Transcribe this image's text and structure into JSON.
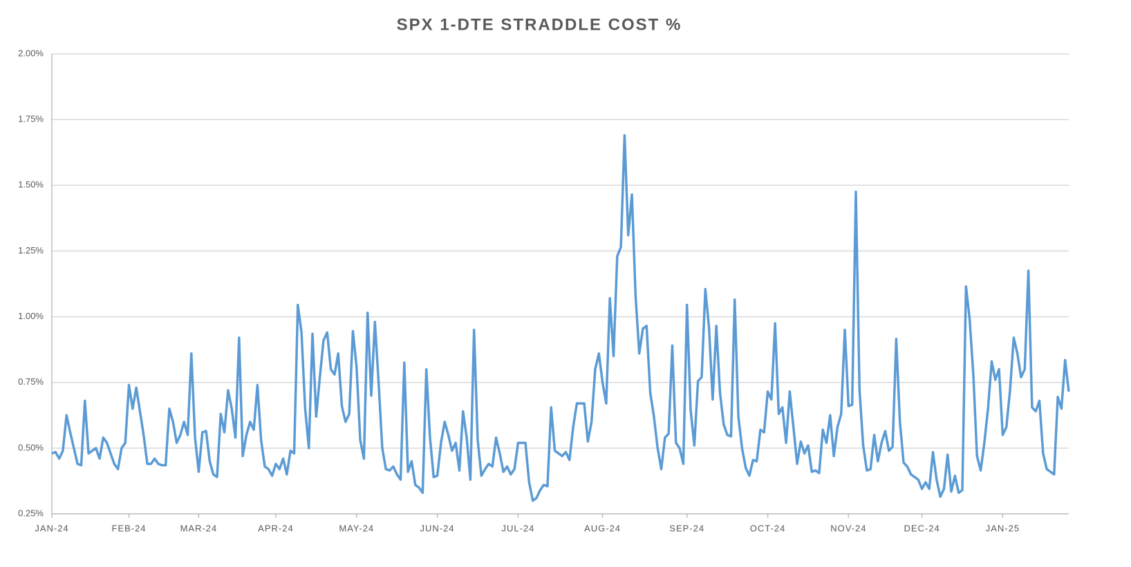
{
  "chart_data": {
    "type": "line",
    "title": "SPX 1-DTE STRADDLE COST %",
    "color": "#5b9bd5",
    "grid": true,
    "ylim": [
      0.25,
      2
    ],
    "yticks": [
      {
        "value": 0.25,
        "label": "0.25%"
      },
      {
        "value": 0.5,
        "label": "0.50%"
      },
      {
        "value": 0.75,
        "label": "0.75%"
      },
      {
        "value": 1,
        "label": "1.00%"
      },
      {
        "value": 1.25,
        "label": "1.25%"
      },
      {
        "value": 1.5,
        "label": "1.50%"
      },
      {
        "value": 1.75,
        "label": "1.75%"
      },
      {
        "value": 2,
        "label": "2.00%"
      }
    ],
    "categories": [
      "JAN-24",
      null,
      null,
      null,
      null,
      null,
      null,
      null,
      null,
      null,
      null,
      null,
      null,
      null,
      null,
      null,
      null,
      null,
      null,
      null,
      null,
      "FEB-24",
      null,
      null,
      null,
      null,
      null,
      null,
      null,
      null,
      null,
      null,
      null,
      null,
      null,
      null,
      null,
      null,
      null,
      null,
      "MAR-24",
      null,
      null,
      null,
      null,
      null,
      null,
      null,
      null,
      null,
      null,
      null,
      null,
      null,
      null,
      null,
      null,
      null,
      null,
      null,
      null,
      "APR-24",
      null,
      null,
      null,
      null,
      null,
      null,
      null,
      null,
      null,
      null,
      null,
      null,
      null,
      null,
      null,
      null,
      null,
      null,
      null,
      null,
      null,
      "MAY-24",
      null,
      null,
      null,
      null,
      null,
      null,
      null,
      null,
      null,
      null,
      null,
      null,
      null,
      null,
      null,
      null,
      null,
      null,
      null,
      null,
      null,
      "JUN-24",
      null,
      null,
      null,
      null,
      null,
      null,
      null,
      null,
      null,
      null,
      null,
      null,
      null,
      null,
      null,
      null,
      null,
      null,
      null,
      null,
      null,
      "JUL-24",
      null,
      null,
      null,
      null,
      null,
      null,
      null,
      null,
      null,
      null,
      null,
      null,
      null,
      null,
      null,
      null,
      null,
      null,
      null,
      null,
      null,
      null,
      "AUG-24",
      null,
      null,
      null,
      null,
      null,
      null,
      null,
      null,
      null,
      null,
      null,
      null,
      null,
      null,
      null,
      null,
      null,
      null,
      null,
      null,
      null,
      null,
      "SEP-24",
      null,
      null,
      null,
      null,
      null,
      null,
      null,
      null,
      null,
      null,
      null,
      null,
      null,
      null,
      null,
      null,
      null,
      null,
      null,
      null,
      null,
      "OCT-24",
      null,
      null,
      null,
      null,
      null,
      null,
      null,
      null,
      null,
      null,
      null,
      null,
      null,
      null,
      null,
      null,
      null,
      null,
      null,
      null,
      null,
      "NOV-24",
      null,
      null,
      null,
      null,
      null,
      null,
      null,
      null,
      null,
      null,
      null,
      null,
      null,
      null,
      null,
      null,
      null,
      null,
      null,
      "DEC-24",
      null,
      null,
      null,
      null,
      null,
      null,
      null,
      null,
      null,
      null,
      null,
      null,
      null,
      null,
      null,
      null,
      null,
      null,
      null,
      null,
      null,
      "JAN-25",
      null,
      null,
      null,
      null,
      null,
      null,
      null,
      null,
      null,
      null,
      null,
      null,
      null,
      null,
      null,
      null,
      null,
      null
    ],
    "values": [
      0.48,
      0.485,
      0.46,
      0.49,
      0.625,
      0.56,
      0.5,
      0.44,
      0.435,
      0.68,
      0.48,
      0.49,
      0.5,
      0.46,
      0.54,
      0.52,
      0.48,
      0.44,
      0.42,
      0.5,
      0.52,
      0.74,
      0.65,
      0.73,
      0.64,
      0.55,
      0.44,
      0.44,
      0.46,
      0.44,
      0.435,
      0.435,
      0.65,
      0.6,
      0.52,
      0.55,
      0.6,
      0.55,
      0.86,
      0.54,
      0.41,
      0.56,
      0.565,
      0.45,
      0.4,
      0.39,
      0.63,
      0.56,
      0.72,
      0.65,
      0.54,
      0.92,
      0.47,
      0.55,
      0.6,
      0.57,
      0.74,
      0.53,
      0.43,
      0.42,
      0.395,
      0.44,
      0.42,
      0.46,
      0.4,
      0.49,
      0.48,
      1.045,
      0.94,
      0.65,
      0.5,
      0.935,
      0.62,
      0.77,
      0.91,
      0.94,
      0.8,
      0.78,
      0.86,
      0.66,
      0.6,
      0.63,
      0.945,
      0.81,
      0.53,
      0.46,
      1.015,
      0.7,
      0.98,
      0.75,
      0.5,
      0.42,
      0.415,
      0.43,
      0.4,
      0.38,
      0.825,
      0.41,
      0.45,
      0.36,
      0.35,
      0.33,
      0.8,
      0.54,
      0.39,
      0.395,
      0.52,
      0.6,
      0.55,
      0.49,
      0.52,
      0.415,
      0.64,
      0.54,
      0.38,
      0.95,
      0.53,
      0.395,
      0.42,
      0.44,
      0.43,
      0.54,
      0.48,
      0.41,
      0.43,
      0.4,
      0.42,
      0.52,
      0.52,
      0.52,
      0.37,
      0.3,
      0.31,
      0.34,
      0.36,
      0.355,
      0.655,
      0.49,
      0.48,
      0.47,
      0.485,
      0.455,
      0.58,
      0.67,
      0.67,
      0.67,
      0.525,
      0.6,
      0.8,
      0.86,
      0.75,
      0.67,
      1.07,
      0.85,
      1.23,
      1.265,
      1.69,
      1.31,
      1.465,
      1.08,
      0.86,
      0.955,
      0.965,
      0.71,
      0.62,
      0.5,
      0.42,
      0.54,
      0.555,
      0.89,
      0.52,
      0.5,
      0.44,
      1.045,
      0.645,
      0.51,
      0.755,
      0.77,
      1.105,
      0.96,
      0.685,
      0.965,
      0.71,
      0.59,
      0.55,
      0.545,
      1.065,
      0.62,
      0.5,
      0.425,
      0.395,
      0.455,
      0.45,
      0.57,
      0.56,
      0.715,
      0.685,
      0.975,
      0.63,
      0.655,
      0.52,
      0.715,
      0.58,
      0.44,
      0.525,
      0.48,
      0.51,
      0.41,
      0.415,
      0.405,
      0.57,
      0.52,
      0.625,
      0.47,
      0.58,
      0.63,
      0.95,
      0.66,
      0.665,
      1.475,
      0.72,
      0.51,
      0.415,
      0.42,
      0.55,
      0.45,
      0.52,
      0.565,
      0.49,
      0.505,
      0.915,
      0.6,
      0.445,
      0.43,
      0.4,
      0.39,
      0.38,
      0.345,
      0.37,
      0.345,
      0.485,
      0.38,
      0.315,
      0.345,
      0.475,
      0.335,
      0.395,
      0.33,
      0.34,
      1.115,
      0.99,
      0.78,
      0.47,
      0.415,
      0.52,
      0.65,
      0.83,
      0.76,
      0.8,
      0.55,
      0.58,
      0.72,
      0.92,
      0.86,
      0.77,
      0.8,
      1.175,
      0.655,
      0.64,
      0.68,
      0.48,
      0.42,
      0.41,
      0.4,
      0.695,
      0.65,
      0.835,
      0.715
    ]
  }
}
